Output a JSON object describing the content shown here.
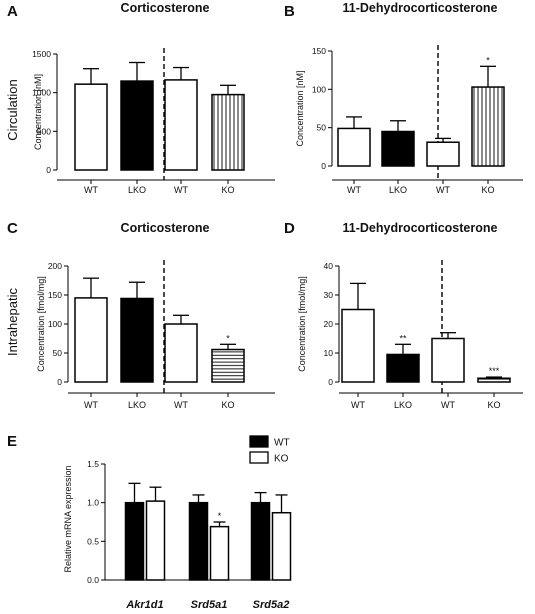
{
  "row_labels": [
    "Circulation",
    "Intrahepatic"
  ],
  "colors": {
    "white": "#ffffff",
    "black": "#000000",
    "ink": "#111111"
  },
  "chart_data": [
    {
      "id": "A",
      "type": "bar",
      "panel_label": "A",
      "title": "Corticosterone",
      "ylabel": "Concentration [nM]",
      "ylim": [
        0,
        1500
      ],
      "yticks": [
        0,
        500,
        1000,
        1500
      ],
      "categories": [
        "WT",
        "LKO",
        "WT",
        "KO"
      ],
      "values": [
        1110,
        1150,
        1165,
        975
      ],
      "errors": [
        200,
        240,
        160,
        120
      ],
      "fills": [
        "white",
        "black",
        "white",
        "vlines"
      ],
      "significance": [
        "",
        "",
        "",
        ""
      ],
      "divider_after": 1
    },
    {
      "id": "B",
      "type": "bar",
      "panel_label": "B",
      "title": "11-Dehydrocorticosterone",
      "ylabel": "Concentration [nM]",
      "ylim": [
        0,
        150
      ],
      "yticks": [
        0,
        50,
        100,
        150
      ],
      "categories": [
        "WT",
        "LKO",
        "WT",
        "KO"
      ],
      "values": [
        49,
        45,
        31,
        103
      ],
      "errors": [
        15,
        14,
        5,
        27
      ],
      "fills": [
        "white",
        "black",
        "white",
        "vlines"
      ],
      "significance": [
        "",
        "",
        "",
        "*"
      ],
      "divider_after": 1
    },
    {
      "id": "C",
      "type": "bar",
      "panel_label": "C",
      "title": "Corticosterone",
      "ylabel": "Concentration [fmol/mg]",
      "ylim": [
        0,
        200
      ],
      "yticks": [
        0,
        50,
        100,
        150,
        200
      ],
      "categories": [
        "WT",
        "LKO",
        "WT",
        "KO"
      ],
      "values": [
        145,
        144,
        100,
        56
      ],
      "errors": [
        34,
        28,
        15,
        9
      ],
      "fills": [
        "white",
        "black",
        "white",
        "hlines"
      ],
      "significance": [
        "",
        "",
        "",
        "*"
      ],
      "divider_after": 1
    },
    {
      "id": "D",
      "type": "bar",
      "panel_label": "D",
      "title": "11-Dehydrocorticosterone",
      "ylabel": "Concentration [fmol/mg]",
      "ylim": [
        0,
        40
      ],
      "yticks": [
        0,
        10,
        20,
        30,
        40
      ],
      "categories": [
        "WT",
        "LKO",
        "WT",
        "KO"
      ],
      "values": [
        25,
        9.5,
        15,
        1.3
      ],
      "errors": [
        9,
        3.5,
        2,
        0.4
      ],
      "fills": [
        "white",
        "black",
        "white",
        "hlines"
      ],
      "significance": [
        "",
        "**",
        "",
        "***"
      ],
      "divider_after": 1
    },
    {
      "id": "E",
      "type": "bar",
      "panel_label": "E",
      "title": "",
      "ylabel": "Relative mRNA expression",
      "ylim": [
        0,
        1.5
      ],
      "yticks": [
        0.0,
        0.5,
        1.0,
        1.5
      ],
      "ytick_labels": [
        "0.0",
        "0.5",
        "1.0",
        "1.5"
      ],
      "categories": [
        "Akr1d1",
        "Srd5a1",
        "Srd5a2"
      ],
      "series": [
        {
          "name": "WT",
          "fill": "black",
          "values": [
            1.0,
            1.0,
            1.0
          ],
          "errors": [
            0.25,
            0.1,
            0.13
          ],
          "significance": [
            "",
            "",
            ""
          ]
        },
        {
          "name": "KO",
          "fill": "white",
          "values": [
            1.02,
            0.69,
            0.87
          ],
          "errors": [
            0.18,
            0.06,
            0.23
          ],
          "significance": [
            "",
            "*",
            ""
          ]
        }
      ],
      "legend_position": "top-right"
    }
  ]
}
